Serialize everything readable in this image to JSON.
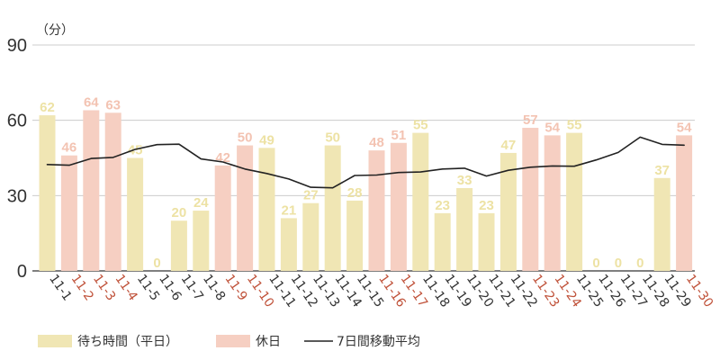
{
  "chart_data": {
    "type": "bar",
    "unit_label": "（分）",
    "ylim": [
      0,
      90
    ],
    "yticks": [
      "0",
      "30",
      "60",
      "90"
    ],
    "categories": [
      "11-1",
      "11-2",
      "11-3",
      "11-4",
      "11-5",
      "11-6",
      "11-7",
      "11-8",
      "11-9",
      "11-10",
      "11-11",
      "11-12",
      "11-13",
      "11-14",
      "11-15",
      "11-16",
      "11-17",
      "11-18",
      "11-19",
      "11-20",
      "11-21",
      "11-22",
      "11-23",
      "11-24",
      "11-25",
      "11-26",
      "11-27",
      "11-28",
      "11-29",
      "11-30"
    ],
    "holiday": [
      false,
      true,
      true,
      true,
      false,
      false,
      false,
      false,
      true,
      true,
      false,
      false,
      false,
      false,
      false,
      true,
      true,
      false,
      false,
      false,
      false,
      false,
      true,
      true,
      false,
      false,
      false,
      false,
      false,
      true
    ],
    "values": [
      62,
      46,
      64,
      63,
      45,
      0,
      20,
      24,
      42,
      50,
      49,
      21,
      27,
      50,
      28,
      48,
      51,
      55,
      23,
      33,
      23,
      47,
      57,
      54,
      55,
      0,
      0,
      0,
      37,
      54
    ],
    "moving_average": [
      42.4,
      42.1,
      44.8,
      45.2,
      48.4,
      50.3,
      50.5,
      44.6,
      43.4,
      40.6,
      38.8,
      36.6,
      33.3,
      33.1,
      38.0,
      38.2,
      39.2,
      39.4,
      40.6,
      40.9,
      37.8,
      40.1,
      41.3,
      41.8,
      41.7,
      44.2,
      47.2,
      53.3,
      50.4,
      50.1
    ],
    "series": [
      {
        "name": "待ち時間（平日）",
        "color": "#f0e6b4"
      },
      {
        "name": "休日",
        "color": "#f6cfc2"
      },
      {
        "name": "7日間移動平均",
        "color": "#222222"
      }
    ],
    "colors": {
      "weekday_label": "#ede2a4",
      "holiday_label": "#f3c3b2",
      "weekday_tick": "#333333",
      "holiday_tick": "#c0523a",
      "grid": "#cccccc",
      "axis": "#555555"
    },
    "grid": true,
    "legend_position": "bottom-left"
  }
}
